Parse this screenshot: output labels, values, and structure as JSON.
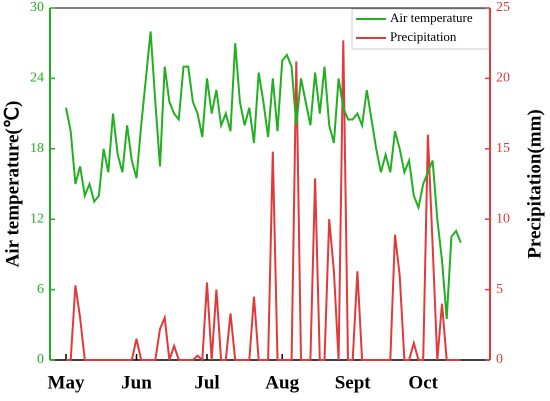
{
  "chart_data": {
    "type": "line",
    "categories": [
      "May",
      null,
      null,
      null,
      null,
      null,
      null,
      null,
      null,
      null,
      null,
      null,
      null,
      null,
      null,
      "Jun",
      null,
      null,
      null,
      null,
      null,
      null,
      null,
      null,
      null,
      null,
      null,
      null,
      null,
      null,
      "Jul",
      null,
      null,
      null,
      null,
      null,
      null,
      null,
      null,
      null,
      null,
      null,
      null,
      null,
      null,
      null,
      "Aug",
      null,
      null,
      null,
      null,
      null,
      null,
      null,
      null,
      null,
      null,
      null,
      null,
      null,
      null,
      "Sept",
      null,
      null,
      null,
      null,
      null,
      null,
      null,
      null,
      null,
      null,
      null,
      null,
      null,
      null,
      "Oct",
      null,
      null,
      null,
      null,
      null,
      null,
      null,
      null
    ],
    "series": [
      {
        "name": "Air temperature",
        "color": "#22b022",
        "axis": "y",
        "values": [
          21.5,
          19.5,
          15,
          16.5,
          14,
          15,
          13.5,
          14,
          18,
          16,
          21,
          17.5,
          16,
          20,
          17,
          15.5,
          20,
          24,
          28,
          22,
          16.5,
          25,
          22,
          21,
          20.5,
          25,
          25,
          22,
          21,
          19,
          24,
          21,
          23,
          20,
          21,
          19.5,
          27,
          22,
          20,
          21.5,
          18.5,
          24.5,
          22,
          19,
          24,
          19.5,
          25.5,
          26,
          25,
          20,
          24,
          22,
          20,
          24.5,
          21,
          25,
          20,
          18.5,
          24,
          21.5,
          20.5,
          20.5,
          21,
          20,
          23,
          20.5,
          18,
          16,
          17.5,
          16,
          19.5,
          18,
          16,
          17,
          14,
          13,
          15,
          16,
          17,
          12,
          8.5,
          3.5,
          10.5,
          11,
          10
        ]
      },
      {
        "name": "Precipitation",
        "color": "#e03a3a",
        "axis": "y2",
        "values": [
          0,
          0,
          5.3,
          3,
          0,
          0,
          0,
          0,
          0,
          0,
          0,
          0,
          0,
          0,
          0,
          1.5,
          0,
          0,
          0,
          0,
          2.2,
          3,
          0,
          1,
          0,
          0,
          0,
          0,
          0.3,
          0,
          5.5,
          0,
          5,
          0,
          0,
          3.3,
          0,
          0,
          0,
          0,
          4.5,
          0,
          0,
          0,
          14.8,
          0,
          0,
          0,
          0,
          21.2,
          0,
          0,
          0,
          12.9,
          0,
          0,
          10,
          6.3,
          0,
          22.7,
          0,
          0,
          6.3,
          0,
          0,
          0,
          0,
          0,
          0,
          0,
          8.9,
          6,
          0,
          0,
          1.2,
          0,
          0,
          16,
          8.2,
          0,
          4,
          0,
          0,
          0,
          0
        ]
      }
    ],
    "ylabel": "Air temperature(℃)",
    "y2label": "Precipitation(mm)",
    "ylim": [
      0,
      30
    ],
    "yticks": [
      0,
      6,
      12,
      18,
      24,
      30
    ],
    "y2lim": [
      0,
      25
    ],
    "y2ticks": [
      0,
      5,
      10,
      15,
      20,
      25
    ],
    "legend": "upper right"
  }
}
